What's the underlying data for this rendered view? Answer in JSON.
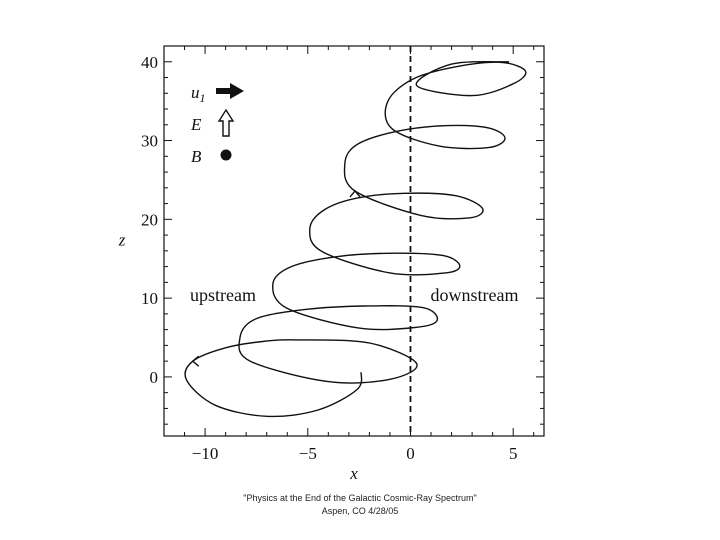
{
  "chart_data": {
    "type": "line",
    "xlabel": "x",
    "ylabel": "z",
    "xlim": [
      -12,
      6.5
    ],
    "ylim": [
      -7.5,
      42
    ],
    "xticks": [
      -10,
      -5,
      0,
      5
    ],
    "yticks": [
      0,
      10,
      20,
      30,
      40
    ],
    "shock_x": 0,
    "regions": {
      "upstream": "upstream",
      "downstream": "downstream"
    },
    "legend": [
      {
        "label": "u",
        "subscript": "1",
        "icon": "solid-right-arrow"
      },
      {
        "label": "E",
        "subscript": "",
        "icon": "hollow-up-arrow"
      },
      {
        "label": "B",
        "subscript": "",
        "icon": "filled-dot"
      }
    ],
    "series": [
      {
        "x": [
          -2.4,
          -2.6,
          -4.5,
          -7.0,
          -9.5,
          -10.9,
          -10.6,
          -9.0,
          -7.2,
          -5.5,
          -2.0,
          0.3,
          -1.0,
          -4.0,
          -7.8,
          -8.3,
          -7.5,
          -5.0,
          -2.2,
          0.6,
          1.3,
          0.3,
          -2.5,
          -6.0,
          -6.7,
          -5.8,
          -3.5,
          -0.8,
          1.6,
          2.4,
          1.7,
          -1.0,
          -4.3,
          -4.9,
          -4.2,
          -2.6,
          -0.3,
          2.2,
          3.5,
          2.9,
          0.5,
          -2.7,
          -3.2,
          -2.6,
          -0.6,
          1.8,
          3.8,
          4.6,
          3.8,
          1.4,
          -0.9,
          -1.1,
          0.2,
          2.5,
          4.5,
          5.6,
          5.0,
          3.0,
          0.3,
          2.0,
          4.8
        ],
        "y": [
          0.6,
          -1.6,
          -4.2,
          -5.0,
          -3.6,
          -0.4,
          2.0,
          3.7,
          4.5,
          4.7,
          4.3,
          1.7,
          -0.3,
          -0.6,
          2.0,
          5.0,
          7.4,
          8.6,
          9.0,
          8.8,
          7.2,
          6.3,
          6.2,
          8.7,
          11.8,
          14.0,
          15.3,
          15.7,
          15.4,
          14.1,
          13.2,
          13.2,
          15.9,
          18.8,
          21.2,
          22.7,
          23.3,
          23.0,
          21.4,
          20.2,
          20.5,
          23.6,
          27.0,
          29.5,
          31.2,
          31.9,
          31.6,
          30.3,
          29.1,
          29.3,
          31.5,
          35.0,
          37.9,
          39.5,
          39.9,
          38.8,
          37.2,
          35.7,
          37.0,
          39.7,
          40.0
        ]
      }
    ],
    "direction_arrows": [
      {
        "at_point": 6,
        "direction": "left"
      },
      {
        "at_point": 41,
        "direction": "up"
      }
    ]
  },
  "caption": {
    "line1": "\"Physics at the End of the Galactic Cosmic-Ray Spectrum\"",
    "line2": "Aspen, CO 4/28/05"
  }
}
